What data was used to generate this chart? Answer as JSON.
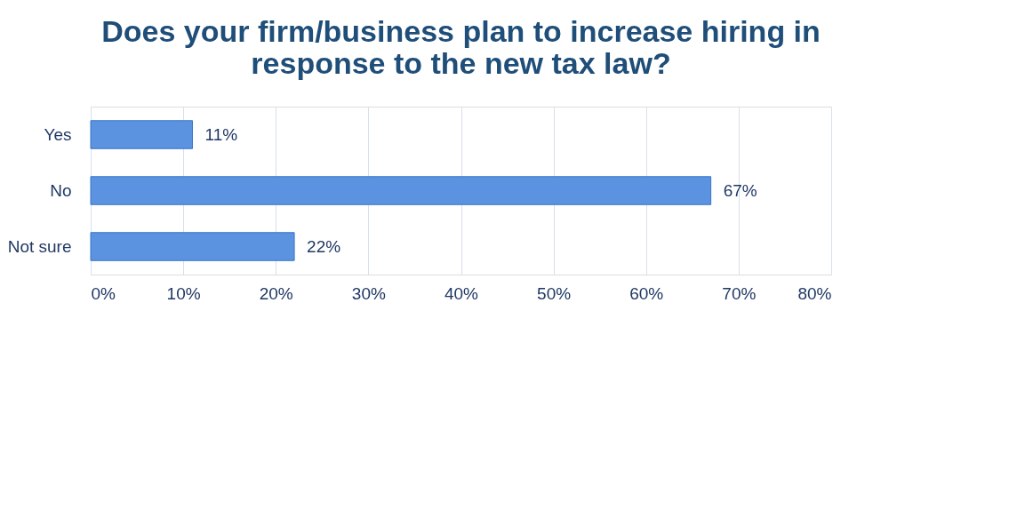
{
  "chart_data": {
    "type": "bar",
    "orientation": "horizontal",
    "title": "Does your firm/business plan to increase hiring in response to the new tax law?",
    "categories": [
      "Yes",
      "No",
      "Not sure"
    ],
    "values": [
      11,
      67,
      22
    ],
    "value_labels": [
      "11%",
      "67%",
      "22%"
    ],
    "color": "#5b93e0",
    "xlim": [
      0,
      80
    ],
    "xticks": [
      {
        "value": 0,
        "label": "0%"
      },
      {
        "value": 10,
        "label": "10%"
      },
      {
        "value": 20,
        "label": "20%"
      },
      {
        "value": 30,
        "label": "30%"
      },
      {
        "value": 40,
        "label": "40%"
      },
      {
        "value": 50,
        "label": "50%"
      },
      {
        "value": 60,
        "label": "60%"
      },
      {
        "value": 70,
        "label": "70%"
      },
      {
        "value": 80,
        "label": "80%"
      }
    ],
    "grid": "x"
  }
}
